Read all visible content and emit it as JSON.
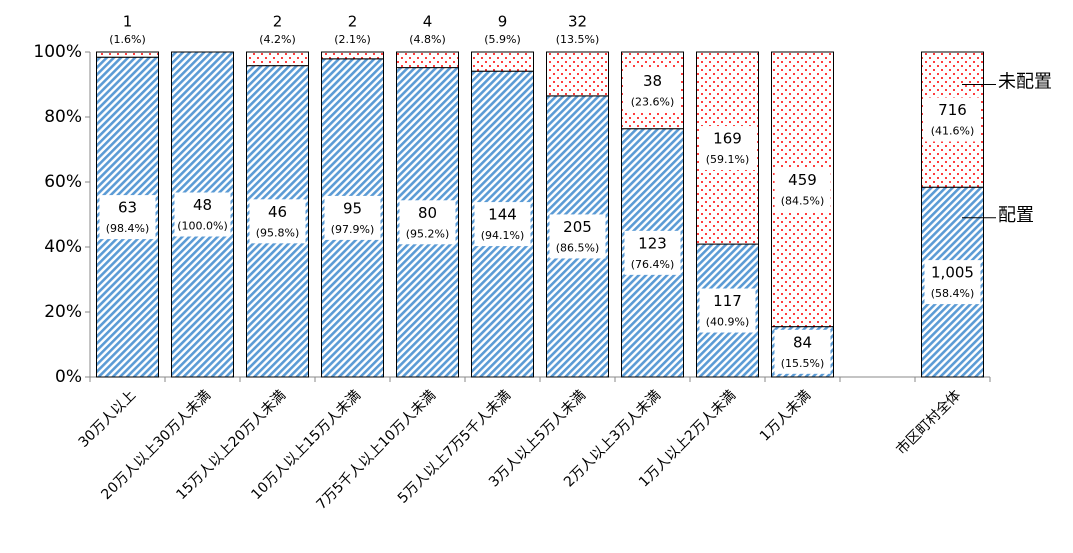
{
  "chart_data": {
    "type": "bar",
    "stacked": true,
    "categories": [
      "30万人以上",
      "20万人以上30万人未満",
      "15万人以上20万人未満",
      "10万人以上15万人未満",
      "7万5千人以上10万人未満",
      "5万人以上7万5千人未満",
      "3万人以上5万人未満",
      "2万人以上3万人未満",
      "1万人以上2万人未満",
      "1万人未満",
      null,
      "市区町村全体"
    ],
    "series": [
      {
        "name": "配置",
        "color": "#5b9bd5",
        "pattern": "hatch",
        "values": [
          98.4,
          100.0,
          95.8,
          97.9,
          95.2,
          94.1,
          86.5,
          76.4,
          40.9,
          15.5,
          null,
          58.4
        ],
        "value_labels": [
          "(98.4%)",
          "(100.0%)",
          "(95.8%)",
          "(97.9%)",
          "(95.2%)",
          "(94.1%)",
          "(86.5%)",
          "(76.4%)",
          "(40.9%)",
          "(15.5%)",
          null,
          "(58.4%)"
        ],
        "count_labels": [
          "63",
          "48",
          "46",
          "95",
          "80",
          "144",
          "205",
          "123",
          "117",
          "84",
          null,
          "1,005"
        ]
      },
      {
        "name": "未配置",
        "color": "#ff0000",
        "pattern": "dots",
        "values": [
          1.6,
          0,
          4.2,
          2.1,
          4.8,
          5.9,
          13.5,
          23.6,
          59.1,
          84.5,
          null,
          41.6
        ],
        "value_labels": [
          "(1.6%)",
          null,
          "(4.2%)",
          "(2.1%)",
          "(4.8%)",
          "(5.9%)",
          "(13.5%)",
          "(23.6%)",
          "(59.1%)",
          "(84.5%)",
          null,
          "(41.6%)"
        ],
        "count_labels": [
          "1",
          null,
          "2",
          "2",
          "4",
          "9",
          "32",
          "38",
          "169",
          "459",
          null,
          "716"
        ]
      }
    ],
    "ylim": [
      0,
      100
    ],
    "yticks": [
      {
        "value": 0,
        "label": "0%"
      },
      {
        "value": 20,
        "label": "20%"
      },
      {
        "value": 40,
        "label": "40%"
      },
      {
        "value": 60,
        "label": "60%"
      },
      {
        "value": 80,
        "label": "80%"
      },
      {
        "value": 100,
        "label": "100%"
      }
    ],
    "grid": false
  }
}
